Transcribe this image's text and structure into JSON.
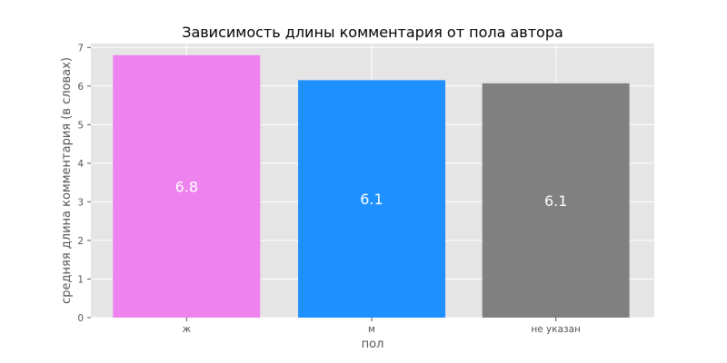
{
  "chart_data": {
    "type": "bar",
    "title": "Зависимость длины комментария от пола автора",
    "xlabel": "пол",
    "ylabel": "средняя длина комментария (в словах)",
    "categories": [
      "ж",
      "м",
      "не указан"
    ],
    "values": [
      6.8,
      6.15,
      6.07
    ],
    "value_labels": [
      "6.8",
      "6.1",
      "6.1"
    ],
    "colors": [
      "#ee82ee",
      "#1e90ff",
      "#808080"
    ],
    "ylim": [
      0,
      7.1
    ],
    "yticks": [
      0,
      1,
      2,
      3,
      4,
      5,
      6,
      7
    ],
    "grid": true,
    "background": "#e5e5e5",
    "grid_color": "#ffffff"
  }
}
